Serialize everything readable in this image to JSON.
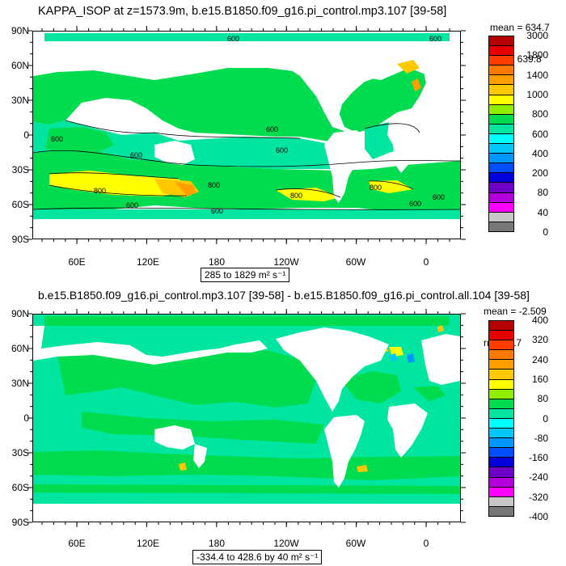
{
  "panels": [
    {
      "title": "KAPPA_ISOP at z=1573.9m, b.e15.B1850.f09_g16.pi_control.mp3.107 [39-58]",
      "stats": [
        "mean = 634.7",
        "rms = 639.8"
      ],
      "range_text": "285 to 1829 m² s⁻¹",
      "lat_labels": [
        "90N",
        "60N",
        "30N",
        "0",
        "30S",
        "60S",
        "90S"
      ],
      "lon_labels": [
        "60E",
        "120E",
        "180",
        "120W",
        "60W",
        "0"
      ],
      "colorbar": {
        "labels": [
          "3000",
          "1800",
          "1400",
          "1000",
          "800",
          "600",
          "400",
          "200",
          "80",
          "40",
          "0"
        ],
        "colors": [
          "#b40000",
          "#e60000",
          "#ff3c00",
          "#ff7800",
          "#ffa000",
          "#ffc800",
          "#ffff00",
          "#90ee00",
          "#00dc50",
          "#00e6a0",
          "#00ffff",
          "#00c8ff",
          "#0096ff",
          "#0050ff",
          "#0000dc",
          "#6e00c8",
          "#b400dc",
          "#ff00ff",
          "#c8c8c8",
          "#777777"
        ]
      },
      "contour_labels": [
        "600",
        "600",
        "600",
        "600",
        "800",
        "800",
        "600",
        "600",
        "600",
        "800",
        "800",
        "600",
        "600",
        "600"
      ]
    },
    {
      "title": "b.e15.B1850.f09_g16.pi_control.mp3.107 [39-58] - b.e15.B1850.f09_g16.pi_control.all.104 [39-58]",
      "stats": [
        "mean = -2.509",
        "rms = 17"
      ],
      "range_text": "-334.4 to 428.6 by 40 m² s⁻¹",
      "lat_labels": [
        "90N",
        "60N",
        "30N",
        "0",
        "30S",
        "60S",
        "90S"
      ],
      "lon_labels": [
        "60E",
        "120E",
        "180",
        "120W",
        "60W",
        "0"
      ],
      "colorbar": {
        "labels": [
          "400",
          "320",
          "240",
          "160",
          "80",
          "0",
          "-80",
          "-160",
          "-240",
          "-320",
          "-400"
        ],
        "colors": [
          "#b40000",
          "#e60000",
          "#ff3c00",
          "#ff7800",
          "#ffa000",
          "#ffc800",
          "#ffff00",
          "#90ee00",
          "#00dc50",
          "#00e6a0",
          "#00ffff",
          "#00c8ff",
          "#0096ff",
          "#0050ff",
          "#0000dc",
          "#6e00c8",
          "#b400dc",
          "#ff00ff",
          "#c8c8c8",
          "#777777"
        ]
      }
    }
  ]
}
